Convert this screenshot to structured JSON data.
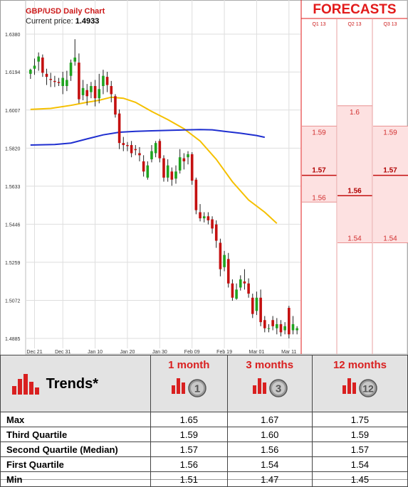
{
  "header": {
    "title": "GBP/USD Daily Chart",
    "current_price_label": "Current price:",
    "current_price": "1.4933"
  },
  "forecasts": {
    "title": "FORECASTS",
    "quarters": [
      "Q1 13",
      "Q2 13",
      "Q3 13"
    ],
    "columns": [
      {
        "quarter": "Q1 13",
        "high": 1.59,
        "median": 1.57,
        "low": 1.56,
        "labels": [
          "1.59",
          "1.57",
          "1.56"
        ]
      },
      {
        "quarter": "Q2 13",
        "high": 1.6,
        "median": 1.56,
        "low": 1.54,
        "labels": [
          "1.6",
          "1.56",
          "1.54"
        ]
      },
      {
        "quarter": "Q3 13",
        "high": 1.59,
        "median": 1.57,
        "low": 1.54,
        "labels": [
          "1.59",
          "1.57",
          "1.54"
        ]
      }
    ]
  },
  "trends": {
    "title": "Trends*",
    "horizons": [
      "1 month",
      "3 months",
      "12 months"
    ],
    "badges": [
      "1",
      "3",
      "12"
    ],
    "rows": [
      {
        "label": "Max",
        "values": [
          "1.65",
          "1.67",
          "1.75"
        ]
      },
      {
        "label": "Third Quartile",
        "values": [
          "1.59",
          "1.60",
          "1.59"
        ]
      },
      {
        "label": "Second Quartile (Median)",
        "values": [
          "1.57",
          "1.56",
          "1.57"
        ]
      },
      {
        "label": "First Quartile",
        "values": [
          "1.56",
          "1.54",
          "1.54"
        ]
      },
      {
        "label": "Min",
        "values": [
          "1.51",
          "1.47",
          "1.45"
        ]
      }
    ]
  },
  "colors": {
    "up": "#1fa31f",
    "down": "#c41010",
    "ma_short": "#f5c000",
    "ma_long": "#1f2fd0",
    "accent": "#e21a1a",
    "forecast_fill": "#fde1e1"
  },
  "chart_data": {
    "type": "candlestick",
    "title": "GBP/USD Daily Chart",
    "ylim": [
      1.4885,
      1.638
    ],
    "y_ticks": [
      "1.6380",
      "1.6194",
      "1.6007",
      "1.5820",
      "1.5633",
      "1.5446",
      "1.5259",
      "1.5072",
      "1.4885"
    ],
    "x_ticks": [
      {
        "label": "Dec 21",
        "i": 1
      },
      {
        "label": "Dec 31",
        "i": 8
      },
      {
        "label": "Jan 10",
        "i": 16
      },
      {
        "label": "Jan 20",
        "i": 24
      },
      {
        "label": "Jan 30",
        "i": 32
      },
      {
        "label": "Feb 09",
        "i": 40
      },
      {
        "label": "Feb 19",
        "i": 48
      },
      {
        "label": "Mar 01",
        "i": 56
      },
      {
        "label": "Mar 11",
        "i": 64
      }
    ],
    "candles": [
      [
        1.6185,
        1.6205,
        1.616,
        1.621
      ],
      [
        1.621,
        1.6225,
        1.618,
        1.626
      ],
      [
        1.6245,
        1.627,
        1.62,
        1.629
      ],
      [
        1.6265,
        1.619,
        1.617,
        1.628
      ],
      [
        1.6185,
        1.617,
        1.613,
        1.621
      ],
      [
        1.616,
        1.6155,
        1.612,
        1.619
      ],
      [
        1.615,
        1.6145,
        1.612,
        1.6175
      ],
      [
        1.6145,
        1.614,
        1.6125,
        1.6165
      ],
      [
        1.6125,
        1.6165,
        1.6085,
        1.6195
      ],
      [
        1.6125,
        1.6155,
        1.61,
        1.62
      ],
      [
        1.6175,
        1.624,
        1.615,
        1.6255
      ],
      [
        1.6245,
        1.6265,
        1.6225,
        1.6355
      ],
      [
        1.624,
        1.606,
        1.604,
        1.6285
      ],
      [
        1.608,
        1.6115,
        1.6055,
        1.6155
      ],
      [
        1.6105,
        1.6075,
        1.603,
        1.6135
      ],
      [
        1.6095,
        1.6125,
        1.6065,
        1.6145
      ],
      [
        1.6125,
        1.6065,
        1.6025,
        1.6155
      ],
      [
        1.6065,
        1.611,
        1.604,
        1.6185
      ],
      [
        1.6125,
        1.6175,
        1.6085,
        1.6205
      ],
      [
        1.617,
        1.613,
        1.6095,
        1.6195
      ],
      [
        1.6125,
        1.6085,
        1.6045,
        1.615
      ],
      [
        1.6075,
        1.5985,
        1.597,
        1.6085
      ],
      [
        1.599,
        1.5845,
        1.5815,
        1.601
      ],
      [
        1.5845,
        1.5835,
        1.5805,
        1.5875
      ],
      [
        1.5835,
        1.583,
        1.5805,
        1.585
      ],
      [
        1.5835,
        1.5795,
        1.5775,
        1.5855
      ],
      [
        1.5815,
        1.581,
        1.5785,
        1.5835
      ],
      [
        1.5795,
        1.5785,
        1.5755,
        1.5825
      ],
      [
        1.5755,
        1.5705,
        1.568,
        1.5785
      ],
      [
        1.5675,
        1.5735,
        1.5665,
        1.5755
      ],
      [
        1.5765,
        1.5805,
        1.575,
        1.5835
      ],
      [
        1.5795,
        1.5845,
        1.5775,
        1.5855
      ],
      [
        1.5855,
        1.577,
        1.575,
        1.5865
      ],
      [
        1.577,
        1.5675,
        1.5655,
        1.5785
      ],
      [
        1.5675,
        1.5735,
        1.5655,
        1.5765
      ],
      [
        1.5705,
        1.5665,
        1.5635,
        1.5725
      ],
      [
        1.567,
        1.5705,
        1.5645,
        1.5735
      ],
      [
        1.571,
        1.5775,
        1.5695,
        1.5815
      ],
      [
        1.577,
        1.5755,
        1.5715,
        1.5795
      ],
      [
        1.5775,
        1.579,
        1.574,
        1.5805
      ],
      [
        1.579,
        1.566,
        1.564,
        1.58
      ],
      [
        1.5665,
        1.5515,
        1.5495,
        1.5675
      ],
      [
        1.5505,
        1.5475,
        1.546,
        1.5545
      ],
      [
        1.5475,
        1.5485,
        1.5455,
        1.5505
      ],
      [
        1.5485,
        1.5465,
        1.5445,
        1.5505
      ],
      [
        1.547,
        1.5425,
        1.54,
        1.5485
      ],
      [
        1.5445,
        1.5365,
        1.533,
        1.5465
      ],
      [
        1.5355,
        1.5225,
        1.519,
        1.5375
      ],
      [
        1.5235,
        1.5295,
        1.5215,
        1.5315
      ],
      [
        1.5275,
        1.5155,
        1.5135,
        1.5305
      ],
      [
        1.5155,
        1.5085,
        1.507,
        1.5175
      ],
      [
        1.508,
        1.5125,
        1.5075,
        1.5155
      ],
      [
        1.5135,
        1.5175,
        1.512,
        1.5195
      ],
      [
        1.5165,
        1.5155,
        1.5125,
        1.5225
      ],
      [
        1.5155,
        1.5105,
        1.5085,
        1.518
      ],
      [
        1.5085,
        1.5005,
        1.4985,
        1.5105
      ],
      [
        1.502,
        1.5085,
        1.5,
        1.5115
      ],
      [
        1.5085,
        1.4965,
        1.4945,
        1.5125
      ],
      [
        1.4975,
        1.4935,
        1.4915,
        1.4995
      ],
      [
        1.4935,
        1.4935,
        1.4915,
        1.4955
      ],
      [
        1.4975,
        1.4945,
        1.4925,
        1.4995
      ],
      [
        1.4935,
        1.4955,
        1.4905,
        1.4985
      ],
      [
        1.4955,
        1.4915,
        1.4895,
        1.4975
      ],
      [
        1.4925,
        1.4945,
        1.4905,
        1.4965
      ],
      [
        1.5035,
        1.4905,
        1.4885,
        1.5045
      ],
      [
        1.4925,
        1.4955,
        1.4905,
        1.4995
      ],
      [
        1.4925,
        1.4935,
        1.4905,
        1.4945
      ]
    ],
    "ma_short": [
      [
        0,
        1.601
      ],
      [
        5,
        1.6015
      ],
      [
        10,
        1.603
      ],
      [
        14,
        1.6045
      ],
      [
        17,
        1.6055
      ],
      [
        20,
        1.607
      ],
      [
        23,
        1.6065
      ],
      [
        26,
        1.6045
      ],
      [
        30,
        1.6
      ],
      [
        34,
        1.596
      ],
      [
        38,
        1.5915
      ],
      [
        42,
        1.5855
      ],
      [
        46,
        1.5765
      ],
      [
        50,
        1.5655
      ],
      [
        54,
        1.5565
      ],
      [
        58,
        1.5505
      ],
      [
        61,
        1.545
      ]
    ],
    "ma_long": [
      [
        0,
        1.5835
      ],
      [
        6,
        1.5838
      ],
      [
        10,
        1.5845
      ],
      [
        14,
        1.5865
      ],
      [
        18,
        1.5885
      ],
      [
        22,
        1.5898
      ],
      [
        26,
        1.5902
      ],
      [
        30,
        1.5905
      ],
      [
        34,
        1.5907
      ],
      [
        38,
        1.5909
      ],
      [
        42,
        1.5911
      ],
      [
        45,
        1.591
      ],
      [
        48,
        1.5902
      ],
      [
        52,
        1.5893
      ],
      [
        56,
        1.5882
      ],
      [
        58,
        1.5873
      ]
    ]
  }
}
